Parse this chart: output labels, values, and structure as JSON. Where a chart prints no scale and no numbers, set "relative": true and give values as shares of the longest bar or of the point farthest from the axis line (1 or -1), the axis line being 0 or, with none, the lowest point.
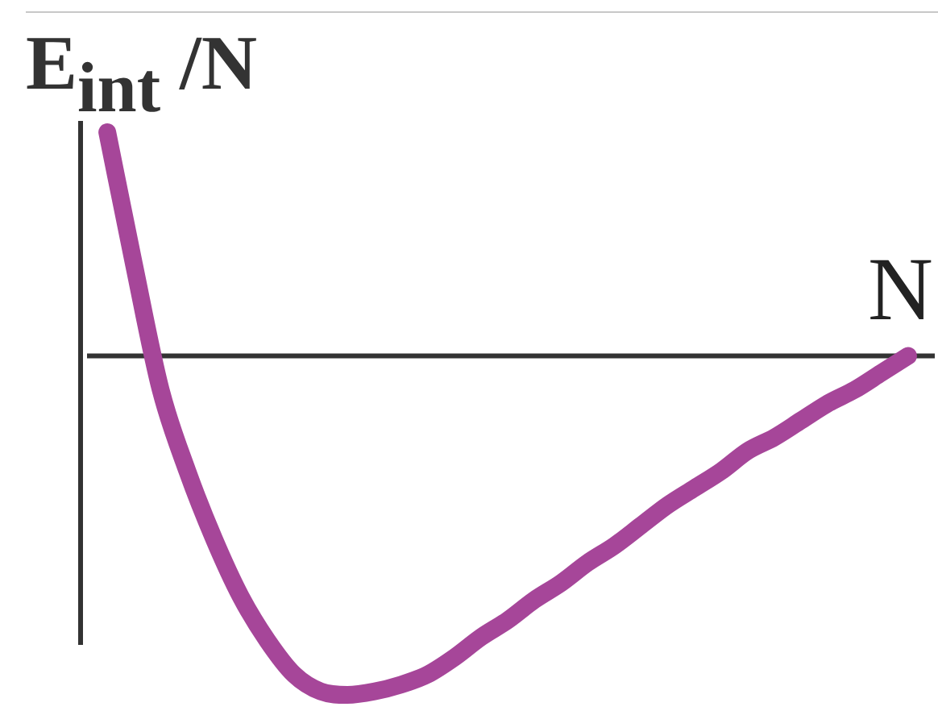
{
  "chart_data": {
    "type": "line",
    "xlabel": "N",
    "ylabel": "E$_{int}$ /N",
    "relative": true,
    "marker": "none",
    "line_style": "solid",
    "color": "#a64699",
    "categories": [
      null,
      null,
      null,
      null,
      null,
      null,
      null,
      null,
      null,
      null,
      null,
      null,
      null,
      null,
      null,
      null,
      null,
      null,
      null,
      null,
      null,
      null,
      null,
      null,
      null,
      null,
      null,
      null,
      null,
      null,
      null
    ],
    "values": [
      0.66,
      0.27,
      -0.1,
      -0.34,
      -0.54,
      -0.71,
      -0.84,
      -0.94,
      -0.99,
      -1,
      -0.99,
      -0.97,
      -0.94,
      -0.89,
      -0.83,
      -0.78,
      -0.72,
      -0.67,
      -0.61,
      -0.56,
      -0.5,
      -0.44,
      -0.39,
      -0.34,
      -0.28,
      -0.24,
      -0.19,
      -0.14,
      -0.1,
      -0.05,
      0
    ]
  }
}
